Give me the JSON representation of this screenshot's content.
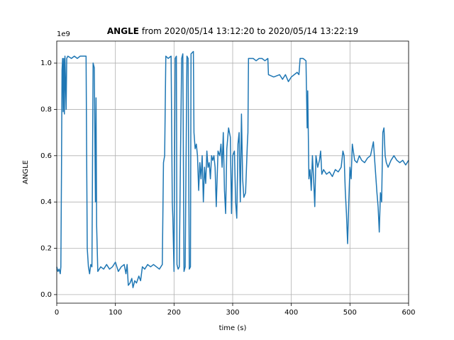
{
  "chart_data": {
    "type": "line",
    "title": [
      "ANGLE",
      "from 2020/05/14 13:12:20 to 2020/05/14 13:22:19"
    ],
    "x_label": "time (s)",
    "y_label": "ANGLE",
    "y_offset_label": "1e9",
    "xlim": [
      0,
      600
    ],
    "ylim": [
      -0.037,
      1.095
    ],
    "xticks": [
      0,
      100,
      200,
      300,
      400,
      500,
      600
    ],
    "yticks": [
      {
        "value": 0,
        "label": "0.0"
      },
      0.2,
      0.4,
      0.6,
      0.8,
      {
        "value": 1,
        "label": "1.0"
      }
    ],
    "grid": true,
    "series": [
      {
        "name": "ANGLE",
        "color": "#1f77b4",
        "x": [
          0,
          2,
          4,
          6,
          7,
          8,
          9,
          10,
          11,
          12,
          13,
          14,
          16,
          17,
          19,
          25,
          30,
          35,
          40,
          45,
          50,
          51,
          52,
          54,
          56,
          58,
          60,
          62,
          64,
          66,
          67,
          68,
          70,
          75,
          80,
          85,
          90,
          95,
          100,
          105,
          110,
          115,
          118,
          120,
          122,
          125,
          128,
          130,
          133,
          136,
          140,
          143,
          146,
          150,
          155,
          160,
          165,
          170,
          175,
          180,
          182,
          184,
          186,
          190,
          195,
          197,
          198,
          200,
          201,
          202,
          204,
          205,
          207,
          209,
          211,
          213,
          215,
          217,
          219,
          222,
          224,
          226,
          228,
          229,
          233,
          234,
          236,
          238,
          240,
          242,
          244,
          246,
          248,
          250,
          252,
          254,
          256,
          258,
          260,
          262,
          264,
          266,
          268,
          270,
          272,
          275,
          278,
          280,
          282,
          284,
          286,
          288,
          290,
          293,
          296,
          298,
          300,
          303,
          305,
          307,
          309,
          311,
          313,
          315,
          317,
          319,
          322,
          325,
          326,
          327,
          335,
          340,
          345,
          350,
          355,
          360,
          361,
          370,
          380,
          385,
          390,
          395,
          400,
          405,
          410,
          413,
          415,
          420,
          425,
          427,
          428,
          430,
          432,
          434,
          436,
          438,
          440,
          442,
          445,
          448,
          450,
          452,
          455,
          460,
          465,
          470,
          475,
          480,
          485,
          488,
          490,
          492,
          494,
          496,
          498,
          500,
          502,
          504,
          508,
          512,
          516,
          520,
          525,
          530,
          535,
          540,
          543,
          546,
          548,
          550,
          552,
          554,
          556,
          558,
          560,
          562,
          565,
          570,
          575,
          580,
          585,
          590,
          595,
          600
        ],
        "values": [
          0.12,
          0.1,
          0.11,
          0.09,
          0.12,
          0.5,
          0.97,
          1.02,
          0.79,
          1.02,
          0.78,
          1.03,
          0.8,
          1.02,
          1.03,
          1.02,
          1.03,
          1.02,
          1.03,
          1.03,
          1.03,
          0.6,
          0.2,
          0.12,
          0.09,
          0.13,
          0.12,
          1.0,
          0.98,
          0.4,
          0.85,
          0.3,
          0.1,
          0.12,
          0.11,
          0.13,
          0.11,
          0.12,
          0.14,
          0.1,
          0.12,
          0.13,
          0.09,
          0.13,
          0.04,
          0.05,
          0.07,
          0.03,
          0.06,
          0.05,
          0.08,
          0.06,
          0.12,
          0.11,
          0.13,
          0.12,
          0.13,
          0.12,
          0.11,
          0.13,
          0.57,
          0.6,
          1.03,
          1.02,
          1.03,
          0.4,
          0.33,
          0.1,
          0.6,
          1.02,
          1.03,
          0.13,
          0.11,
          0.12,
          0.6,
          1.02,
          1.04,
          0.1,
          0.12,
          1.03,
          1.02,
          0.11,
          0.12,
          1.04,
          1.05,
          0.7,
          0.63,
          0.65,
          0.6,
          0.45,
          0.57,
          0.5,
          0.6,
          0.4,
          0.55,
          0.48,
          0.62,
          0.55,
          0.57,
          0.5,
          0.6,
          0.58,
          0.6,
          0.55,
          0.38,
          0.62,
          0.6,
          0.65,
          0.55,
          0.7,
          0.45,
          0.35,
          0.63,
          0.72,
          0.68,
          0.35,
          0.6,
          0.62,
          0.4,
          0.33,
          0.65,
          0.7,
          0.4,
          0.78,
          0.5,
          0.42,
          0.44,
          0.65,
          0.7,
          1.02,
          1.02,
          1.01,
          1.02,
          1.02,
          1.01,
          1.02,
          0.95,
          0.94,
          0.95,
          0.93,
          0.95,
          0.92,
          0.94,
          0.95,
          0.96,
          0.95,
          1.02,
          1.02,
          1.01,
          0.72,
          0.88,
          0.5,
          0.54,
          0.45,
          0.6,
          0.5,
          0.38,
          0.6,
          0.55,
          0.58,
          0.62,
          0.52,
          0.54,
          0.52,
          0.53,
          0.51,
          0.54,
          0.53,
          0.55,
          0.62,
          0.6,
          0.45,
          0.35,
          0.22,
          0.4,
          0.55,
          0.5,
          0.65,
          0.58,
          0.57,
          0.6,
          0.58,
          0.57,
          0.59,
          0.6,
          0.66,
          0.55,
          0.44,
          0.38,
          0.27,
          0.44,
          0.4,
          0.7,
          0.72,
          0.6,
          0.57,
          0.55,
          0.58,
          0.6,
          0.58,
          0.57,
          0.58,
          0.56,
          0.58
        ]
      }
    ]
  }
}
